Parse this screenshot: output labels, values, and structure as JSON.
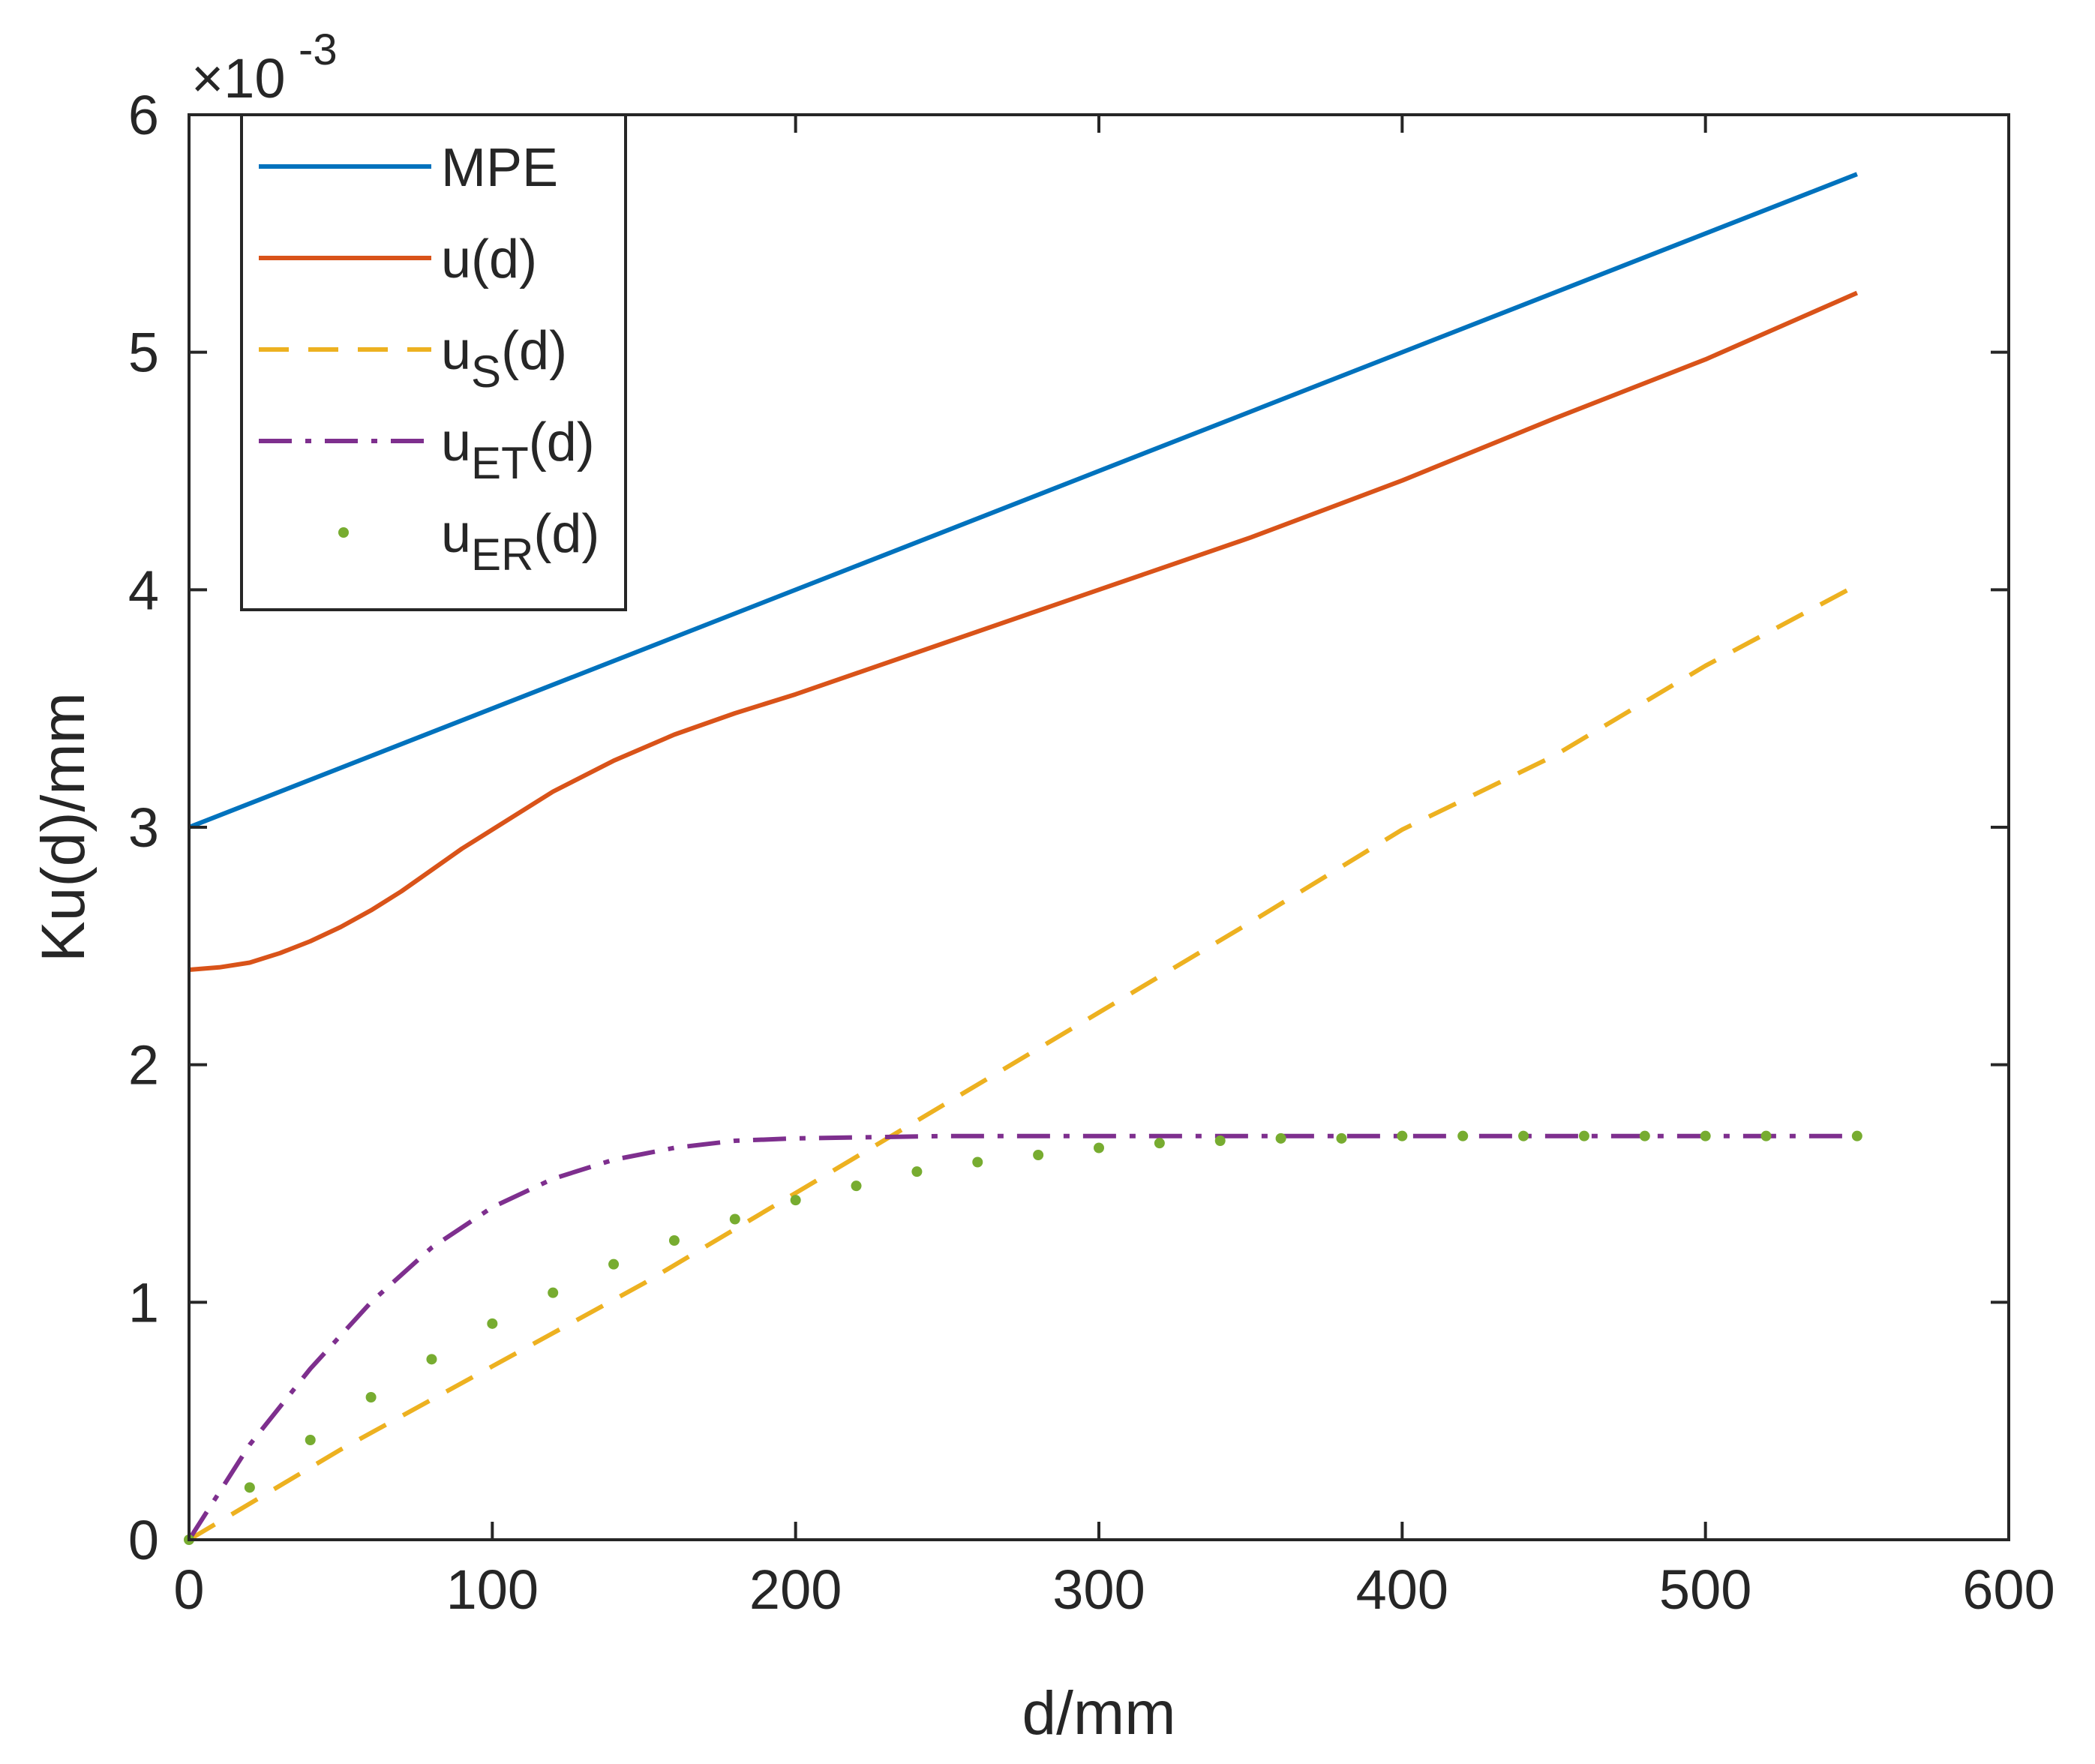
{
  "chart_data": {
    "type": "line",
    "xlabel": "d/mm",
    "ylabel": "Ku(d)/mm",
    "xlim": [
      0,
      600
    ],
    "ylim": [
      0,
      6
    ],
    "y_exponent_base": "×10",
    "y_exponent_power": "-3",
    "xticks": [
      "0",
      "100",
      "200",
      "300",
      "400",
      "500",
      "600"
    ],
    "yticks": [
      "0",
      "1",
      "2",
      "3",
      "4",
      "5",
      "6"
    ],
    "grid": false,
    "legend_position": "top-left",
    "series": [
      {
        "name": "MPE",
        "label_main": "MPE",
        "label_sub": "",
        "label_end": "",
        "color": "#0072BD",
        "style": "solid",
        "x": [
          0,
          550
        ],
        "y": [
          3.0,
          5.75
        ]
      },
      {
        "name": "u(d)",
        "label_main": "u(d)",
        "label_sub": "",
        "label_end": "",
        "color": "#D95319",
        "style": "solid",
        "x": [
          0,
          10,
          20,
          30,
          40,
          50,
          60,
          70,
          80,
          90,
          100,
          120,
          140,
          160,
          180,
          200,
          250,
          300,
          350,
          400,
          450,
          500,
          550
        ],
        "y": [
          2.4,
          2.41,
          2.43,
          2.47,
          2.52,
          2.58,
          2.65,
          2.73,
          2.82,
          2.91,
          2.99,
          3.15,
          3.28,
          3.39,
          3.48,
          3.56,
          3.78,
          4.0,
          4.22,
          4.46,
          4.72,
          4.97,
          5.25
        ]
      },
      {
        "name": "uS(d)",
        "label_main": "u",
        "label_sub": "S",
        "label_end": "(d)",
        "color": "#EDB120",
        "style": "dashed",
        "x": [
          0,
          50,
          100,
          150,
          200,
          250,
          300,
          350,
          400,
          450,
          500,
          550
        ],
        "y": [
          0.0,
          0.38,
          0.73,
          1.08,
          1.46,
          1.84,
          2.22,
          2.6,
          2.99,
          3.3,
          3.68,
          4.02
        ]
      },
      {
        "name": "uET(d)",
        "label_main": "u",
        "label_sub": "ET",
        "label_end": "(d)",
        "color": "#7E2F8E",
        "style": "dashdot",
        "x": [
          0,
          20,
          40,
          60,
          80,
          100,
          120,
          140,
          160,
          180,
          200,
          250,
          300,
          350,
          400,
          450,
          500,
          550
        ],
        "y": [
          0.0,
          0.4,
          0.72,
          1.0,
          1.23,
          1.4,
          1.52,
          1.6,
          1.65,
          1.68,
          1.69,
          1.7,
          1.7,
          1.7,
          1.7,
          1.7,
          1.7,
          1.7
        ]
      },
      {
        "name": "uER(d)",
        "label_main": "u",
        "label_sub": "ER",
        "label_end": "(d)",
        "color": "#77AC30",
        "style": "dotted",
        "x": [
          0,
          20,
          40,
          60,
          80,
          100,
          120,
          140,
          160,
          180,
          200,
          220,
          240,
          260,
          280,
          300,
          320,
          340,
          360,
          380,
          400,
          420,
          440,
          460,
          480,
          500,
          520,
          550
        ],
        "y": [
          0.0,
          0.22,
          0.42,
          0.6,
          0.76,
          0.91,
          1.04,
          1.16,
          1.26,
          1.35,
          1.43,
          1.49,
          1.55,
          1.59,
          1.62,
          1.65,
          1.67,
          1.68,
          1.69,
          1.69,
          1.7,
          1.7,
          1.7,
          1.7,
          1.7,
          1.7,
          1.7,
          1.7
        ]
      }
    ]
  }
}
